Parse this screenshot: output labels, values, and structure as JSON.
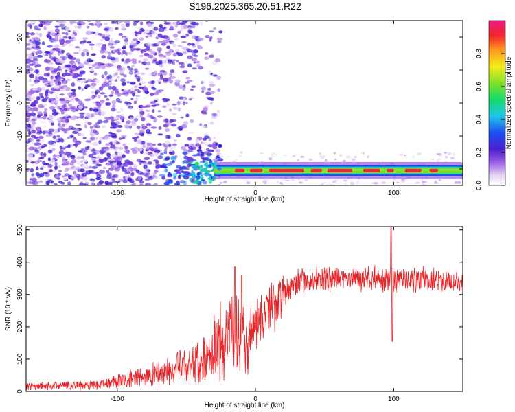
{
  "title": "S196.2025.365.20.51.R22",
  "chart_data": [
    {
      "type": "heatmap",
      "xlabel": "Height of straight line (km)",
      "ylabel": "Frequency (Hz)",
      "xlim": [
        -166,
        150
      ],
      "ylim": [
        -25,
        25
      ],
      "xticks": [
        -100,
        0,
        100
      ],
      "xtick_labels": [
        "-100",
        "0",
        "100"
      ],
      "yticks": [
        -20,
        -10,
        0,
        10,
        20
      ],
      "ytick_labels": [
        "-20",
        "-10",
        "0",
        "10",
        "20"
      ],
      "colorbar": {
        "label": "Normalized spectral amplitude",
        "range": [
          0,
          1
        ],
        "ticks": [
          0.0,
          0.2,
          0.4,
          0.6,
          0.8
        ],
        "tick_labels": [
          "0.0",
          "0.2",
          "0.4",
          "0.6",
          "0.8"
        ]
      },
      "features": [
        {
          "name": "signal line",
          "x_start": -30,
          "x_end": 150,
          "frequency_hz": -20.5,
          "peak_amplitude": 0.95
        },
        {
          "name": "noise region",
          "x_start": -166,
          "x_end": -30,
          "frequency_range": [
            -25,
            25
          ]
        }
      ]
    },
    {
      "type": "line",
      "xlabel": "Height of straight line (km)",
      "ylabel": "SNR (10 * v/v)",
      "xlim": [
        -166,
        150
      ],
      "ylim": [
        0,
        510
      ],
      "xticks": [
        -100,
        0,
        100
      ],
      "xtick_labels": [
        "-100",
        "0",
        "100"
      ],
      "yticks": [
        0,
        100,
        200,
        300,
        400,
        500
      ],
      "ytick_labels": [
        "0",
        "100",
        "200",
        "300",
        "400",
        "500"
      ],
      "color": "#e8262a",
      "trend": {
        "x": [
          -166,
          -140,
          -120,
          -100,
          -80,
          -60,
          -40,
          -30,
          -20,
          -15,
          -10,
          -5,
          0,
          5,
          10,
          15,
          20,
          25,
          30,
          40,
          50,
          60,
          80,
          95,
          100,
          105,
          120,
          150
        ],
        "y": [
          15,
          18,
          20,
          30,
          45,
          65,
          95,
          130,
          170,
          200,
          160,
          180,
          210,
          230,
          260,
          270,
          300,
          320,
          335,
          345,
          348,
          350,
          350,
          345,
          340,
          345,
          345,
          340
        ]
      },
      "spikes": [
        {
          "x": -15,
          "y": 385
        },
        {
          "x": -10,
          "y": 360
        },
        {
          "x": 98,
          "y": 510
        },
        {
          "x": 99,
          "y": 155
        }
      ]
    }
  ]
}
